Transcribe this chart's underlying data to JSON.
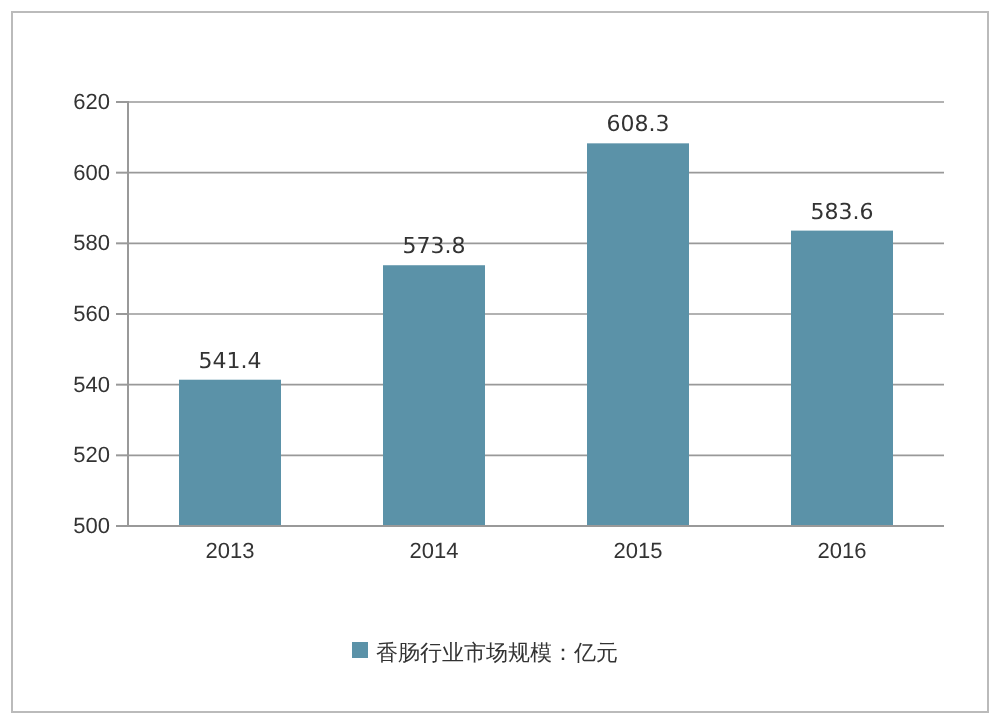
{
  "chart_data": {
    "type": "bar",
    "categories": [
      "2013",
      "2014",
      "2015",
      "2016"
    ],
    "series": [
      {
        "name": "香肠行业市场规模：亿元",
        "color": "#5b92a8",
        "values": [
          541.4,
          573.8,
          608.3,
          583.6
        ]
      }
    ],
    "ylim": [
      500,
      620
    ],
    "yticks": [
      500,
      520,
      540,
      560,
      580,
      600,
      620
    ],
    "grid": "y",
    "legend": "bottom",
    "data_labels": true
  }
}
